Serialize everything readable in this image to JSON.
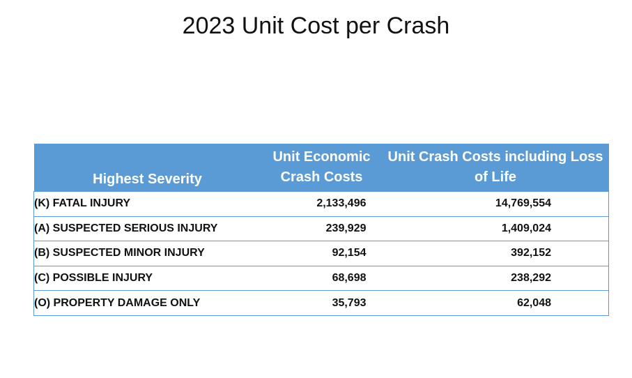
{
  "title": "2023 Unit Cost per Crash",
  "table": {
    "headers": {
      "severity": "Highest Severity",
      "economic": "Unit Economic Crash Costs",
      "loss_of_life": "Unit Crash Costs including Loss of Life"
    },
    "rows": [
      {
        "severity": "(K) FATAL INJURY",
        "economic": "2,133,496",
        "loss_of_life": "14,769,554"
      },
      {
        "severity": "(A) SUSPECTED SERIOUS INJURY",
        "economic": "239,929",
        "loss_of_life": "1,409,024"
      },
      {
        "severity": "(B) SUSPECTED MINOR INJURY",
        "economic": "92,154",
        "loss_of_life": "392,152"
      },
      {
        "severity": "(C) POSSIBLE INJURY",
        "economic": "68,698",
        "loss_of_life": "238,292"
      },
      {
        "severity": "(O) PROPERTY DAMAGE ONLY",
        "economic": "35,793",
        "loss_of_life": "62,048"
      }
    ]
  },
  "colors": {
    "header_background": "#5b9bd5",
    "header_text": "#ffffff",
    "border": "#5b9bd5"
  }
}
